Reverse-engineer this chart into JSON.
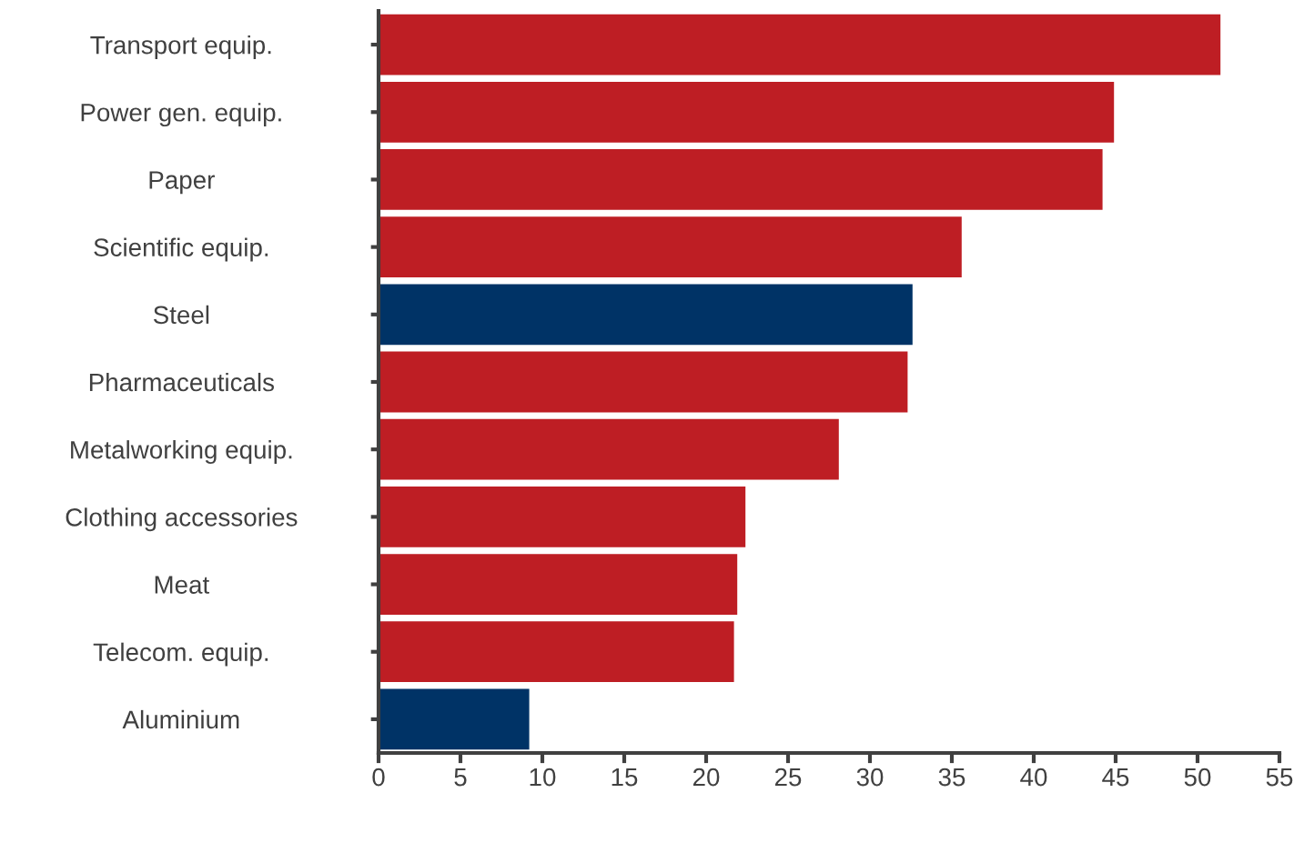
{
  "chart_data": {
    "type": "bar",
    "orientation": "horizontal",
    "categories": [
      "Transport equip.",
      "Power gen. equip.",
      "Paper",
      "Scientific equip.",
      "Steel",
      "Pharmaceuticals",
      "Metalworking equip.",
      "Clothing accessories",
      "Meat",
      "Telecom. equip.",
      "Aluminium"
    ],
    "values": [
      51.4,
      44.9,
      44.2,
      35.6,
      32.6,
      32.3,
      28.1,
      22.4,
      21.9,
      21.7,
      9.2
    ],
    "colors": [
      "#be1e24",
      "#be1e24",
      "#be1e24",
      "#be1e24",
      "#003366",
      "#be1e24",
      "#be1e24",
      "#be1e24",
      "#be1e24",
      "#be1e24",
      "#003366"
    ],
    "xlim": [
      0,
      55
    ],
    "xticks": [
      0,
      5,
      10,
      15,
      20,
      25,
      30,
      35,
      40,
      45,
      50,
      55
    ],
    "grid": false
  }
}
